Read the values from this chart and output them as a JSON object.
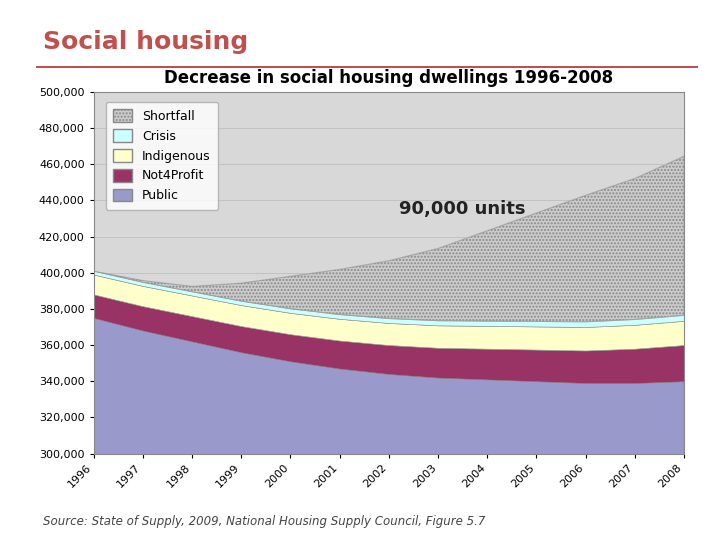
{
  "title": "Decrease in social housing dwellings 1996-2008",
  "main_title": "Social housing",
  "source_text": "Source: State of Supply, 2009, National Housing Supply Council, Figure 5.7",
  "annotation": "90,000 units",
  "years": [
    1996,
    1997,
    1998,
    1999,
    2000,
    2001,
    2002,
    2003,
    2004,
    2005,
    2006,
    2007,
    2008
  ],
  "series": {
    "Public": [
      375000,
      368000,
      362000,
      356000,
      351000,
      347000,
      344000,
      342000,
      341000,
      340000,
      339000,
      339000,
      340000
    ],
    "Not4Profit": [
      13000,
      13500,
      14000,
      14500,
      15000,
      15500,
      16000,
      16500,
      17000,
      17500,
      18000,
      19000,
      20000
    ],
    "Indigenous": [
      11000,
      11200,
      11400,
      11600,
      11800,
      12000,
      12200,
      12400,
      12600,
      12800,
      13000,
      13200,
      13400
    ],
    "Crisis": [
      2000,
      2100,
      2200,
      2300,
      2400,
      2500,
      2600,
      2700,
      2800,
      2900,
      3000,
      3100,
      3200
    ],
    "Shortfall": [
      0,
      1000,
      3000,
      10000,
      18000,
      25000,
      32000,
      40000,
      50000,
      60000,
      70000,
      78000,
      88000
    ]
  },
  "colors": {
    "Public": "#9999cc",
    "Not4Profit": "#993366",
    "Indigenous": "#ffffcc",
    "Crisis": "#ccffff",
    "Shortfall_dots": "#cccccc",
    "Shortfall_top": "#b0b0b0"
  },
  "ylim": [
    300000,
    500000
  ],
  "yticks": [
    300000,
    320000,
    340000,
    360000,
    380000,
    400000,
    420000,
    440000,
    460000,
    480000,
    500000
  ],
  "background_color": "#ffffff",
  "outer_box_color": "#cccccc",
  "title_color": "#c0504d",
  "title_fontsize": 18,
  "inner_title_fontsize": 12,
  "legend_fontsize": 9,
  "tick_fontsize": 8,
  "annotation_fontsize": 13
}
